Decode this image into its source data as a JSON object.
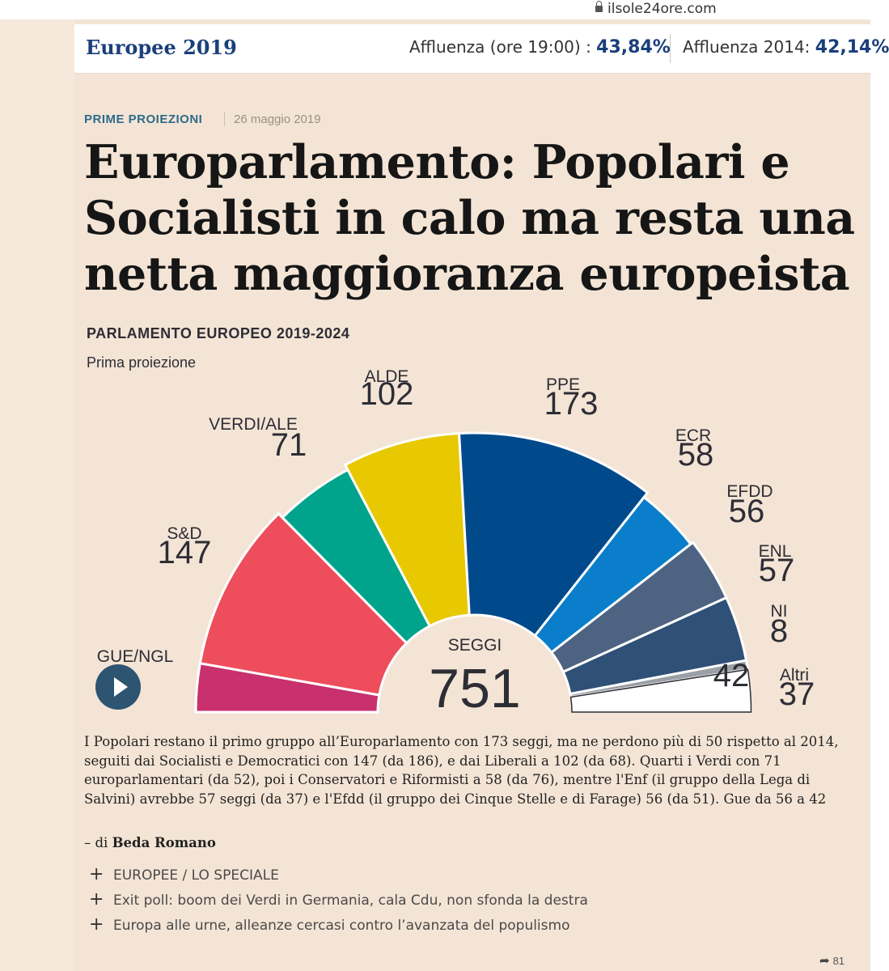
{
  "browser": {
    "url": "ilsole24ore.com"
  },
  "header": {
    "brand": "Europee 2019",
    "affluenza_label": "Affluenza (ore 19:00) :",
    "affluenza_value": "43,84%",
    "affluenza2014_label": "Affluenza 2014:",
    "affluenza2014_value": "42,14%"
  },
  "article": {
    "kicker": "PRIME PROIEZIONI",
    "date": "26 maggio 2019",
    "headline": "Europarlamento: Popolari e Socialisti in calo ma resta una netta maggioranza europeista",
    "body": "I Popolari restano il primo gruppo all’Europarlamento con 173 seggi, ma ne perdono più di 50 rispetto al 2014, seguiti dai Socialisti e Democratici con 147 (da 186), e dai Liberali a 102 (da 68). Quarti i Verdi con 71 europarlamentari (da 52), poi i Conservatori e Riformisti a 58 (da 76), mentre l'Enf (il gruppo della Lega di Salvini) avrebbe 57 seggi (da 37) e l'Efdd (il gruppo dei Cinque Stelle e di Farage) 56 (da 51). Gue da 56 a 42",
    "byline_prefix": "– di",
    "byline_author": "Beda Romano"
  },
  "related": [
    "EUROPEE / LO SPECIALE",
    "Exit poll: boom dei Verdi in Germania, cala Cdu, non sfonda la destra",
    "Europa alle urne, alleanze cercasi contro l’avanzata del populismo"
  ],
  "share": {
    "count": "81"
  },
  "chart_data": {
    "type": "pie",
    "variant": "parliament-hemicycle",
    "title": "PARLAMENTO EUROPEO 2019-2024",
    "subtitle": "Prima proiezione",
    "center_label": "SEGGI",
    "total": 751,
    "total_label": "751",
    "groups": [
      {
        "name": "GUE/NGL",
        "seats": 42,
        "color": "#c8306e"
      },
      {
        "name": "S&D",
        "seats": 147,
        "color": "#ee4d5c"
      },
      {
        "name": "VERDI/ALE",
        "seats": 71,
        "color": "#00a48c"
      },
      {
        "name": "ALDE",
        "seats": 102,
        "color": "#e8c800"
      },
      {
        "name": "PPE",
        "seats": 173,
        "color": "#004a8c"
      },
      {
        "name": "ECR",
        "seats": 58,
        "color": "#0a7ecb"
      },
      {
        "name": "EFDD",
        "seats": 56,
        "color": "#4d6381"
      },
      {
        "name": "ENL",
        "seats": 57,
        "color": "#2f5077"
      },
      {
        "name": "NI",
        "seats": 8,
        "color": "#9aa0a6"
      },
      {
        "name": "Altri",
        "seats": 37,
        "color": "#ffffff"
      }
    ]
  }
}
